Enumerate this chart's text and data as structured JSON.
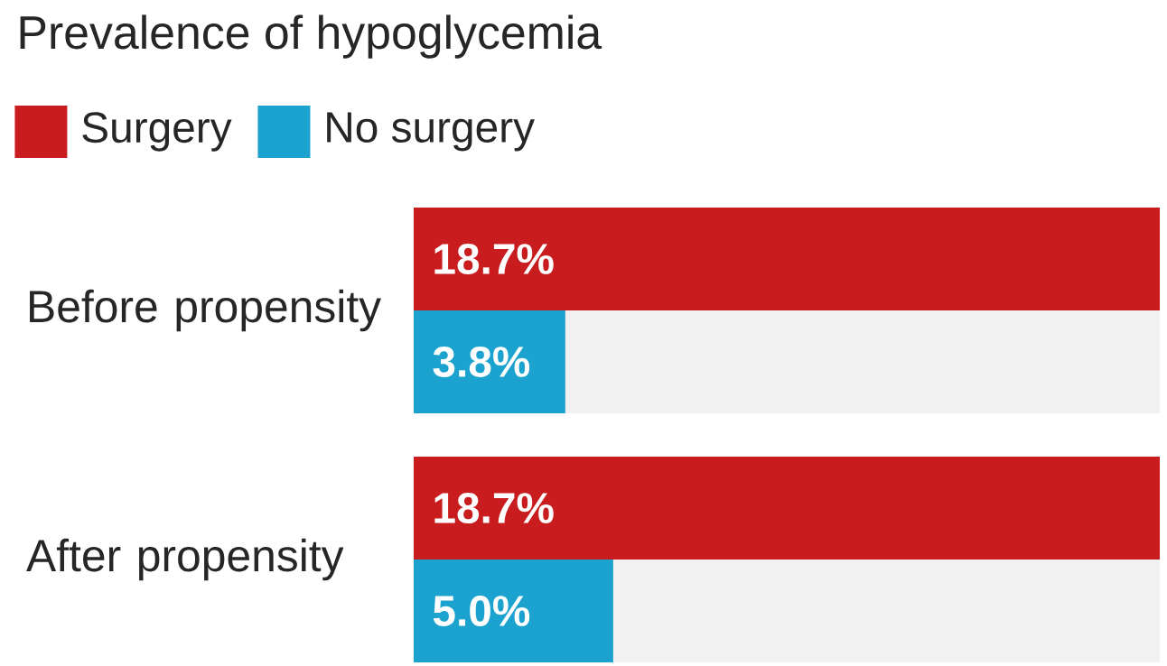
{
  "chart_data": {
    "type": "bar",
    "orientation": "horizontal",
    "title": "Prevalence of hypoglycemia",
    "categories": [
      "Before propensity",
      "After propensity"
    ],
    "series": [
      {
        "name": "Surgery",
        "color": "#c81c1e",
        "values": [
          18.7,
          18.7
        ],
        "value_labels": [
          "18.7%",
          "18.7%"
        ]
      },
      {
        "name": "No surgery",
        "color": "#1ba2cf",
        "values": [
          3.8,
          5.0
        ],
        "value_labels": [
          "3.8%",
          "5.0%"
        ]
      }
    ],
    "xlim": [
      0,
      18.7
    ],
    "tick_labels": "y",
    "legend": "top left"
  }
}
